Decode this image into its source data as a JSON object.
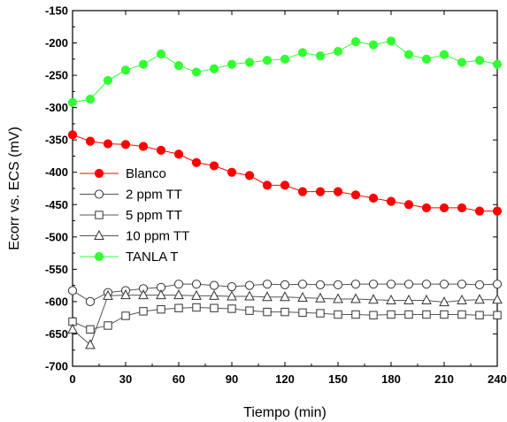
{
  "chart_data": {
    "type": "line",
    "xlabel": "Tiempo (min)",
    "ylabel": "Ecorr vs. ECS (mV)",
    "xlim": [
      0,
      240
    ],
    "ylim": [
      -700,
      -150
    ],
    "x_ticks": [
      0,
      30,
      60,
      90,
      120,
      150,
      180,
      210,
      240
    ],
    "y_ticks": [
      -150,
      -200,
      -250,
      -300,
      -350,
      -400,
      -450,
      -500,
      -550,
      -600,
      -650,
      -700
    ],
    "grid": false,
    "legend_position": "middle-left",
    "series": [
      {
        "name": "Blanco",
        "marker": "filled-circle",
        "color": "#ff0000",
        "line_color": "#ff0000",
        "x": [
          0,
          10,
          20,
          30,
          40,
          50,
          60,
          70,
          80,
          90,
          100,
          110,
          120,
          130,
          140,
          150,
          160,
          170,
          180,
          190,
          200,
          210,
          220,
          230,
          240
        ],
        "values": [
          -342,
          -352,
          -356,
          -357,
          -360,
          -366,
          -372,
          -385,
          -390,
          -400,
          -405,
          -420,
          -420,
          -430,
          -430,
          -430,
          -435,
          -440,
          -445,
          -450,
          -455,
          -455,
          -455,
          -460,
          -460
        ]
      },
      {
        "name": "2 ppm TT",
        "marker": "open-circle",
        "color": "#ffffff",
        "line_color": "#555555",
        "x": [
          0,
          10,
          20,
          30,
          40,
          50,
          60,
          70,
          80,
          90,
          100,
          110,
          120,
          130,
          140,
          150,
          160,
          170,
          180,
          190,
          200,
          210,
          220,
          230,
          240
        ],
        "values": [
          -583,
          -600,
          -586,
          -583,
          -580,
          -578,
          -573,
          -573,
          -575,
          -577,
          -575,
          -573,
          -574,
          -573,
          -574,
          -574,
          -573,
          -573,
          -573,
          -573,
          -573,
          -573,
          -573,
          -574,
          -573
        ]
      },
      {
        "name": "5 ppm TT",
        "marker": "open-square",
        "color": "#ffffff",
        "line_color": "#555555",
        "x": [
          0,
          10,
          20,
          30,
          40,
          50,
          60,
          70,
          80,
          90,
          100,
          110,
          120,
          130,
          140,
          150,
          160,
          170,
          180,
          190,
          200,
          210,
          220,
          230,
          240
        ],
        "values": [
          -631,
          -643,
          -637,
          -622,
          -615,
          -612,
          -610,
          -609,
          -610,
          -611,
          -614,
          -616,
          -616,
          -617,
          -618,
          -620,
          -620,
          -621,
          -620,
          -620,
          -620,
          -620,
          -620,
          -621,
          -621
        ]
      },
      {
        "name": "10 ppm TT",
        "marker": "open-triangle",
        "color": "#ffffff",
        "line_color": "#555555",
        "x": [
          0,
          10,
          20,
          30,
          40,
          50,
          60,
          70,
          80,
          90,
          100,
          110,
          120,
          130,
          140,
          150,
          160,
          170,
          180,
          190,
          200,
          210,
          220,
          230,
          240
        ],
        "values": [
          -643,
          -667,
          -591,
          -590,
          -590,
          -590,
          -590,
          -591,
          -591,
          -592,
          -592,
          -593,
          -593,
          -594,
          -595,
          -596,
          -596,
          -597,
          -598,
          -598,
          -598,
          -601,
          -598,
          -597,
          -597
        ]
      },
      {
        "name": "TANLA T",
        "marker": "filled-circle",
        "color": "#33ff33",
        "line_color": "#33ff33",
        "x": [
          0,
          10,
          20,
          30,
          40,
          50,
          60,
          70,
          80,
          90,
          100,
          110,
          120,
          130,
          140,
          150,
          160,
          170,
          180,
          190,
          200,
          210,
          220,
          230,
          240
        ],
        "values": [
          -292,
          -287,
          -258,
          -242,
          -233,
          -217,
          -235,
          -245,
          -240,
          -233,
          -230,
          -227,
          -225,
          -215,
          -220,
          -213,
          -198,
          -203,
          -197,
          -218,
          -225,
          -218,
          -230,
          -227,
          -233
        ]
      }
    ]
  }
}
